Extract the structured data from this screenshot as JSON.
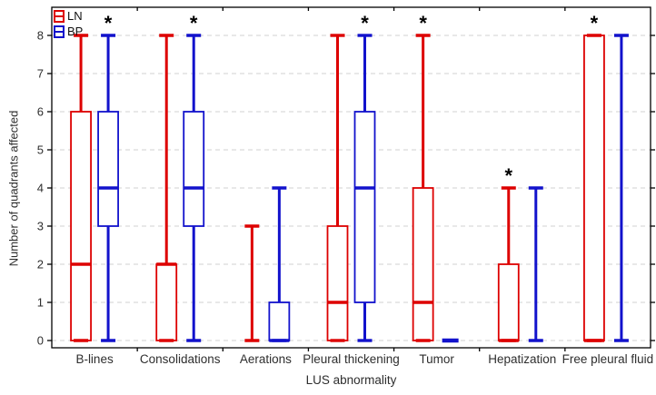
{
  "chart_data": {
    "type": "box",
    "title": "",
    "xlabel": "LUS abnormality",
    "ylabel": "Number of quadrants affected",
    "ylim": [
      0,
      8
    ],
    "yticks": [
      0,
      1,
      2,
      3,
      4,
      5,
      6,
      7,
      8
    ],
    "grid": "horizontal-dashed",
    "gridline_color": "#d9d9d9",
    "frame_color": "#000000",
    "legend_position": "top-left-inside",
    "significance_marker": "*",
    "categories": [
      "B-lines",
      "Consolidations",
      "Aerations",
      "Pleural thickening",
      "Tumor",
      "Hepatization",
      "Free pleural fluid"
    ],
    "series": [
      {
        "name": "LN",
        "color": "#dd0000",
        "boxes": [
          {
            "min": 0,
            "q1": 0,
            "median": 2,
            "q3": 6,
            "max": 8,
            "significant": false
          },
          {
            "min": 0,
            "q1": 0,
            "median": 2,
            "q3": 2,
            "max": 8,
            "significant": false
          },
          {
            "min": 0,
            "q1": 0,
            "median": 0,
            "q3": 0,
            "max": 3,
            "significant": false
          },
          {
            "min": 0,
            "q1": 0,
            "median": 1,
            "q3": 3,
            "max": 8,
            "significant": false
          },
          {
            "min": 0,
            "q1": 0,
            "median": 1,
            "q3": 4,
            "max": 8,
            "significant": true
          },
          {
            "min": 0,
            "q1": 0,
            "median": 0,
            "q3": 2,
            "max": 4,
            "significant": true
          },
          {
            "min": 0,
            "q1": 0,
            "median": 0,
            "q3": 8,
            "max": 8,
            "significant": true
          }
        ]
      },
      {
        "name": "BP",
        "color": "#1212cc",
        "boxes": [
          {
            "min": 0,
            "q1": 3,
            "median": 4,
            "q3": 6,
            "max": 8,
            "significant": true
          },
          {
            "min": 0,
            "q1": 3,
            "median": 4,
            "q3": 6,
            "max": 8,
            "significant": true
          },
          {
            "min": 0,
            "q1": 0,
            "median": 0,
            "q3": 1,
            "max": 4,
            "significant": false
          },
          {
            "min": 0,
            "q1": 1,
            "median": 4,
            "q3": 6,
            "max": 8,
            "significant": true
          },
          {
            "min": 0,
            "q1": 0,
            "median": 0,
            "q3": 0,
            "max": 0,
            "significant": false
          },
          {
            "min": 0,
            "q1": 0,
            "median": 0,
            "q3": 0,
            "max": 4,
            "significant": false
          },
          {
            "min": 0,
            "q1": 0,
            "median": 0,
            "q3": 0,
            "max": 8,
            "significant": false
          }
        ]
      }
    ]
  }
}
